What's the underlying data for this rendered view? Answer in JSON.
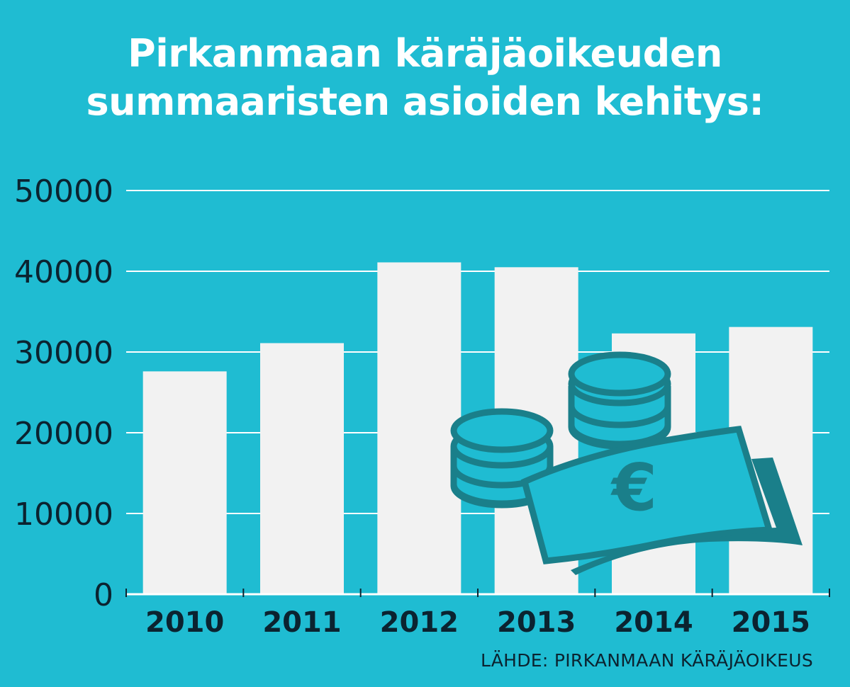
{
  "chart_data": {
    "type": "bar",
    "title_lines": [
      "Pirkanmaan käräjäoikeuden",
      "summaaristen asioiden kehitys:"
    ],
    "categories": [
      "2010",
      "2011",
      "2012",
      "2013",
      "2014",
      "2015"
    ],
    "values": [
      27600,
      31100,
      41100,
      40500,
      32300,
      33100
    ],
    "ylim": [
      0,
      50000
    ],
    "yticks": [
      "0",
      "10000",
      "20000",
      "30000",
      "40000",
      "50000"
    ],
    "grid": true,
    "source": "LÄHDE: PIRKANMAAN KÄRÄJÄOIKEUS"
  },
  "colors": {
    "background": "#1fbcd2",
    "bar": "#f2f2f2",
    "gridline": "#ffffff",
    "axis_text": "#0b2330",
    "illustration": "#1a7f8a"
  },
  "illustration": {
    "description_icons": [
      "coins-stack-icon",
      "euro-banknote-icon"
    ],
    "symbol": "€"
  }
}
